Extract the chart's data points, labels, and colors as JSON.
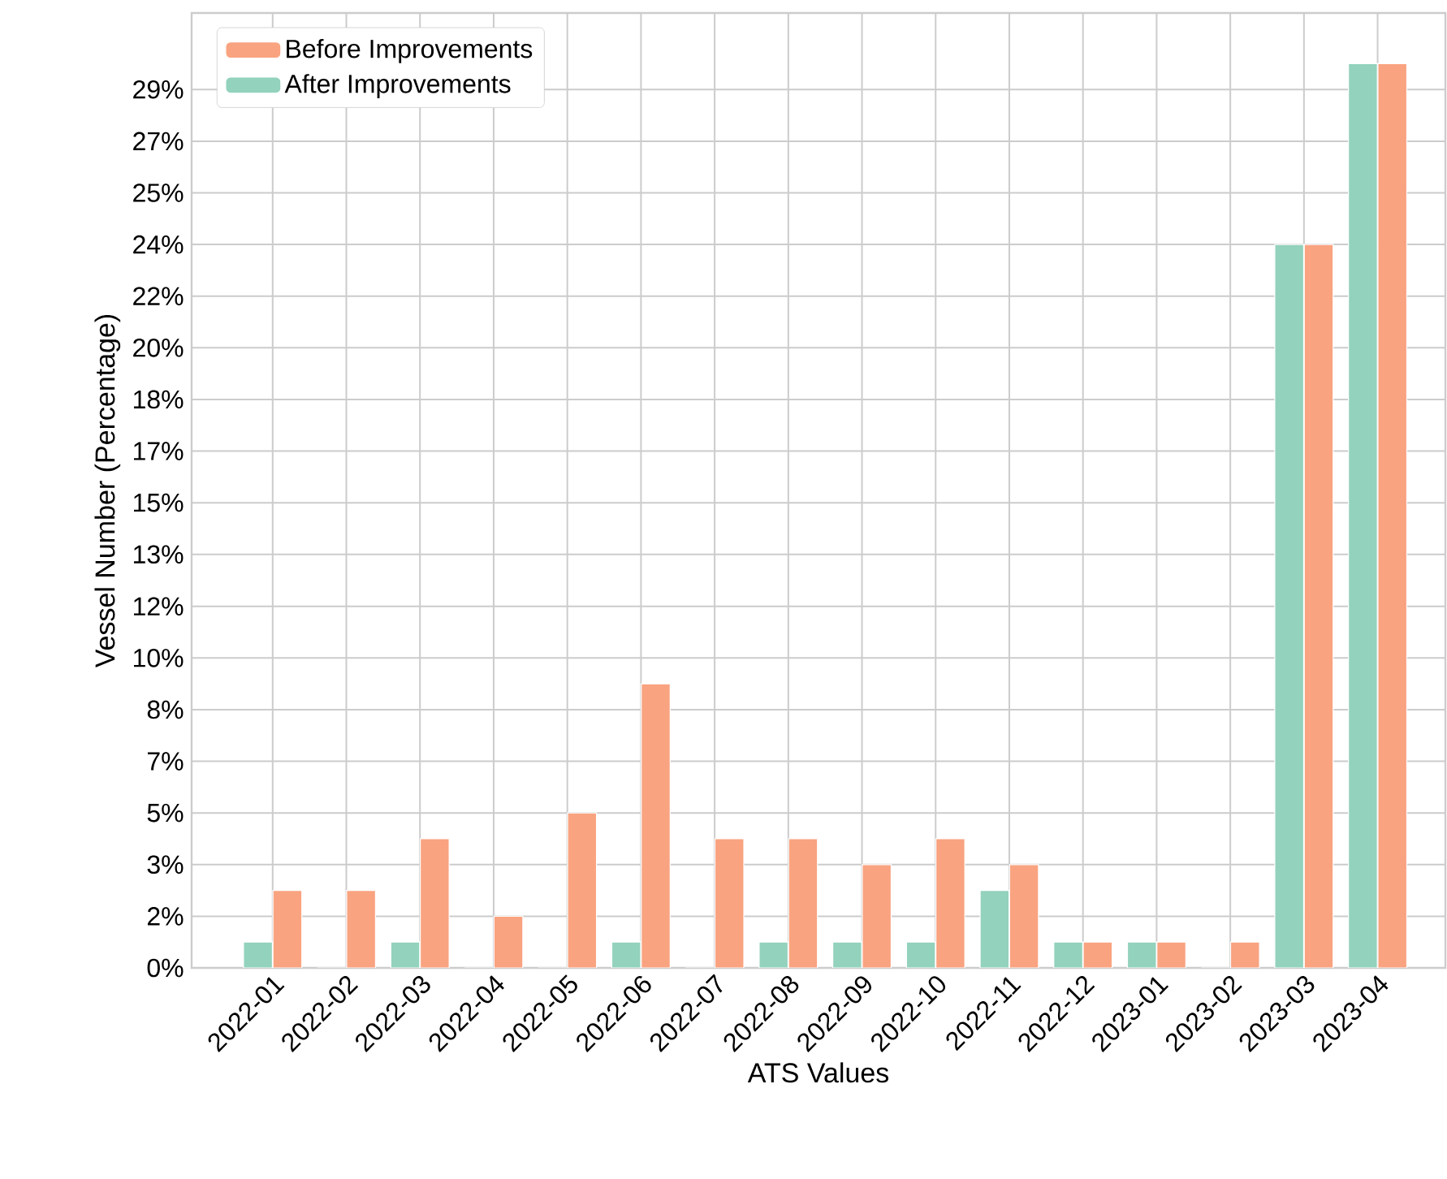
{
  "chart_data": {
    "type": "bar",
    "xlabel": "ATS Values",
    "ylabel": "Vessel Number (Percentage)",
    "categories": [
      "2022-01",
      "2022-02",
      "2022-03",
      "2022-04",
      "2022-05",
      "2022-06",
      "2022-07",
      "2022-08",
      "2022-09",
      "2022-10",
      "2022-11",
      "2022-12",
      "2023-01",
      "2023-02",
      "2023-03",
      "2023-04"
    ],
    "series": [
      {
        "name": "Before Improvements",
        "color": "#f9a380",
        "values": [
          2.52,
          2.52,
          4.2,
          1.68,
          5.04,
          9.24,
          4.2,
          4.2,
          3.36,
          4.2,
          3.36,
          0.84,
          0.84,
          0.84,
          23.53,
          29.41
        ]
      },
      {
        "name": "After Improvements",
        "color": "#93d2bc",
        "values": [
          0.84,
          0,
          0.84,
          0,
          0,
          0.84,
          0,
          0.84,
          0.84,
          0.84,
          2.52,
          0.84,
          0.84,
          0,
          23.53,
          29.41
        ]
      }
    ],
    "ylim": [
      0,
      31.06
    ],
    "yticks": [
      {
        "value": 0,
        "label": "0%"
      },
      {
        "value": 1.68,
        "label": "2%"
      },
      {
        "value": 3.36,
        "label": "3%"
      },
      {
        "value": 5.04,
        "label": "5%"
      },
      {
        "value": 6.72,
        "label": "7%"
      },
      {
        "value": 8.4,
        "label": "8%"
      },
      {
        "value": 10.08,
        "label": "10%"
      },
      {
        "value": 11.76,
        "label": "12%"
      },
      {
        "value": 13.45,
        "label": "13%"
      },
      {
        "value": 15.13,
        "label": "15%"
      },
      {
        "value": 16.81,
        "label": "17%"
      },
      {
        "value": 18.49,
        "label": "18%"
      },
      {
        "value": 20.17,
        "label": "20%"
      },
      {
        "value": 21.85,
        "label": "22%"
      },
      {
        "value": 23.53,
        "label": "24%"
      },
      {
        "value": 25.21,
        "label": "25%"
      },
      {
        "value": 26.89,
        "label": "27%"
      },
      {
        "value": 28.57,
        "label": "29%"
      }
    ],
    "grid": true,
    "legend": "top left"
  }
}
